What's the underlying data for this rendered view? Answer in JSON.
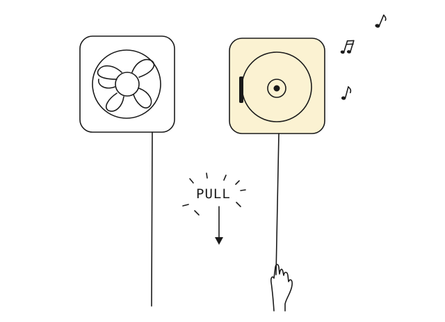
{
  "illustration": {
    "pull_label": "PULL",
    "colors": {
      "ink": "#1a1a1a",
      "player_panel": "#fbf2d2",
      "background": "#ffffff"
    },
    "icons": {
      "left": "fan-icon",
      "right": "cd-player-icon",
      "hand": "hand-icon",
      "arrow": "arrow-down-icon",
      "notes": "music-note-icon"
    }
  }
}
